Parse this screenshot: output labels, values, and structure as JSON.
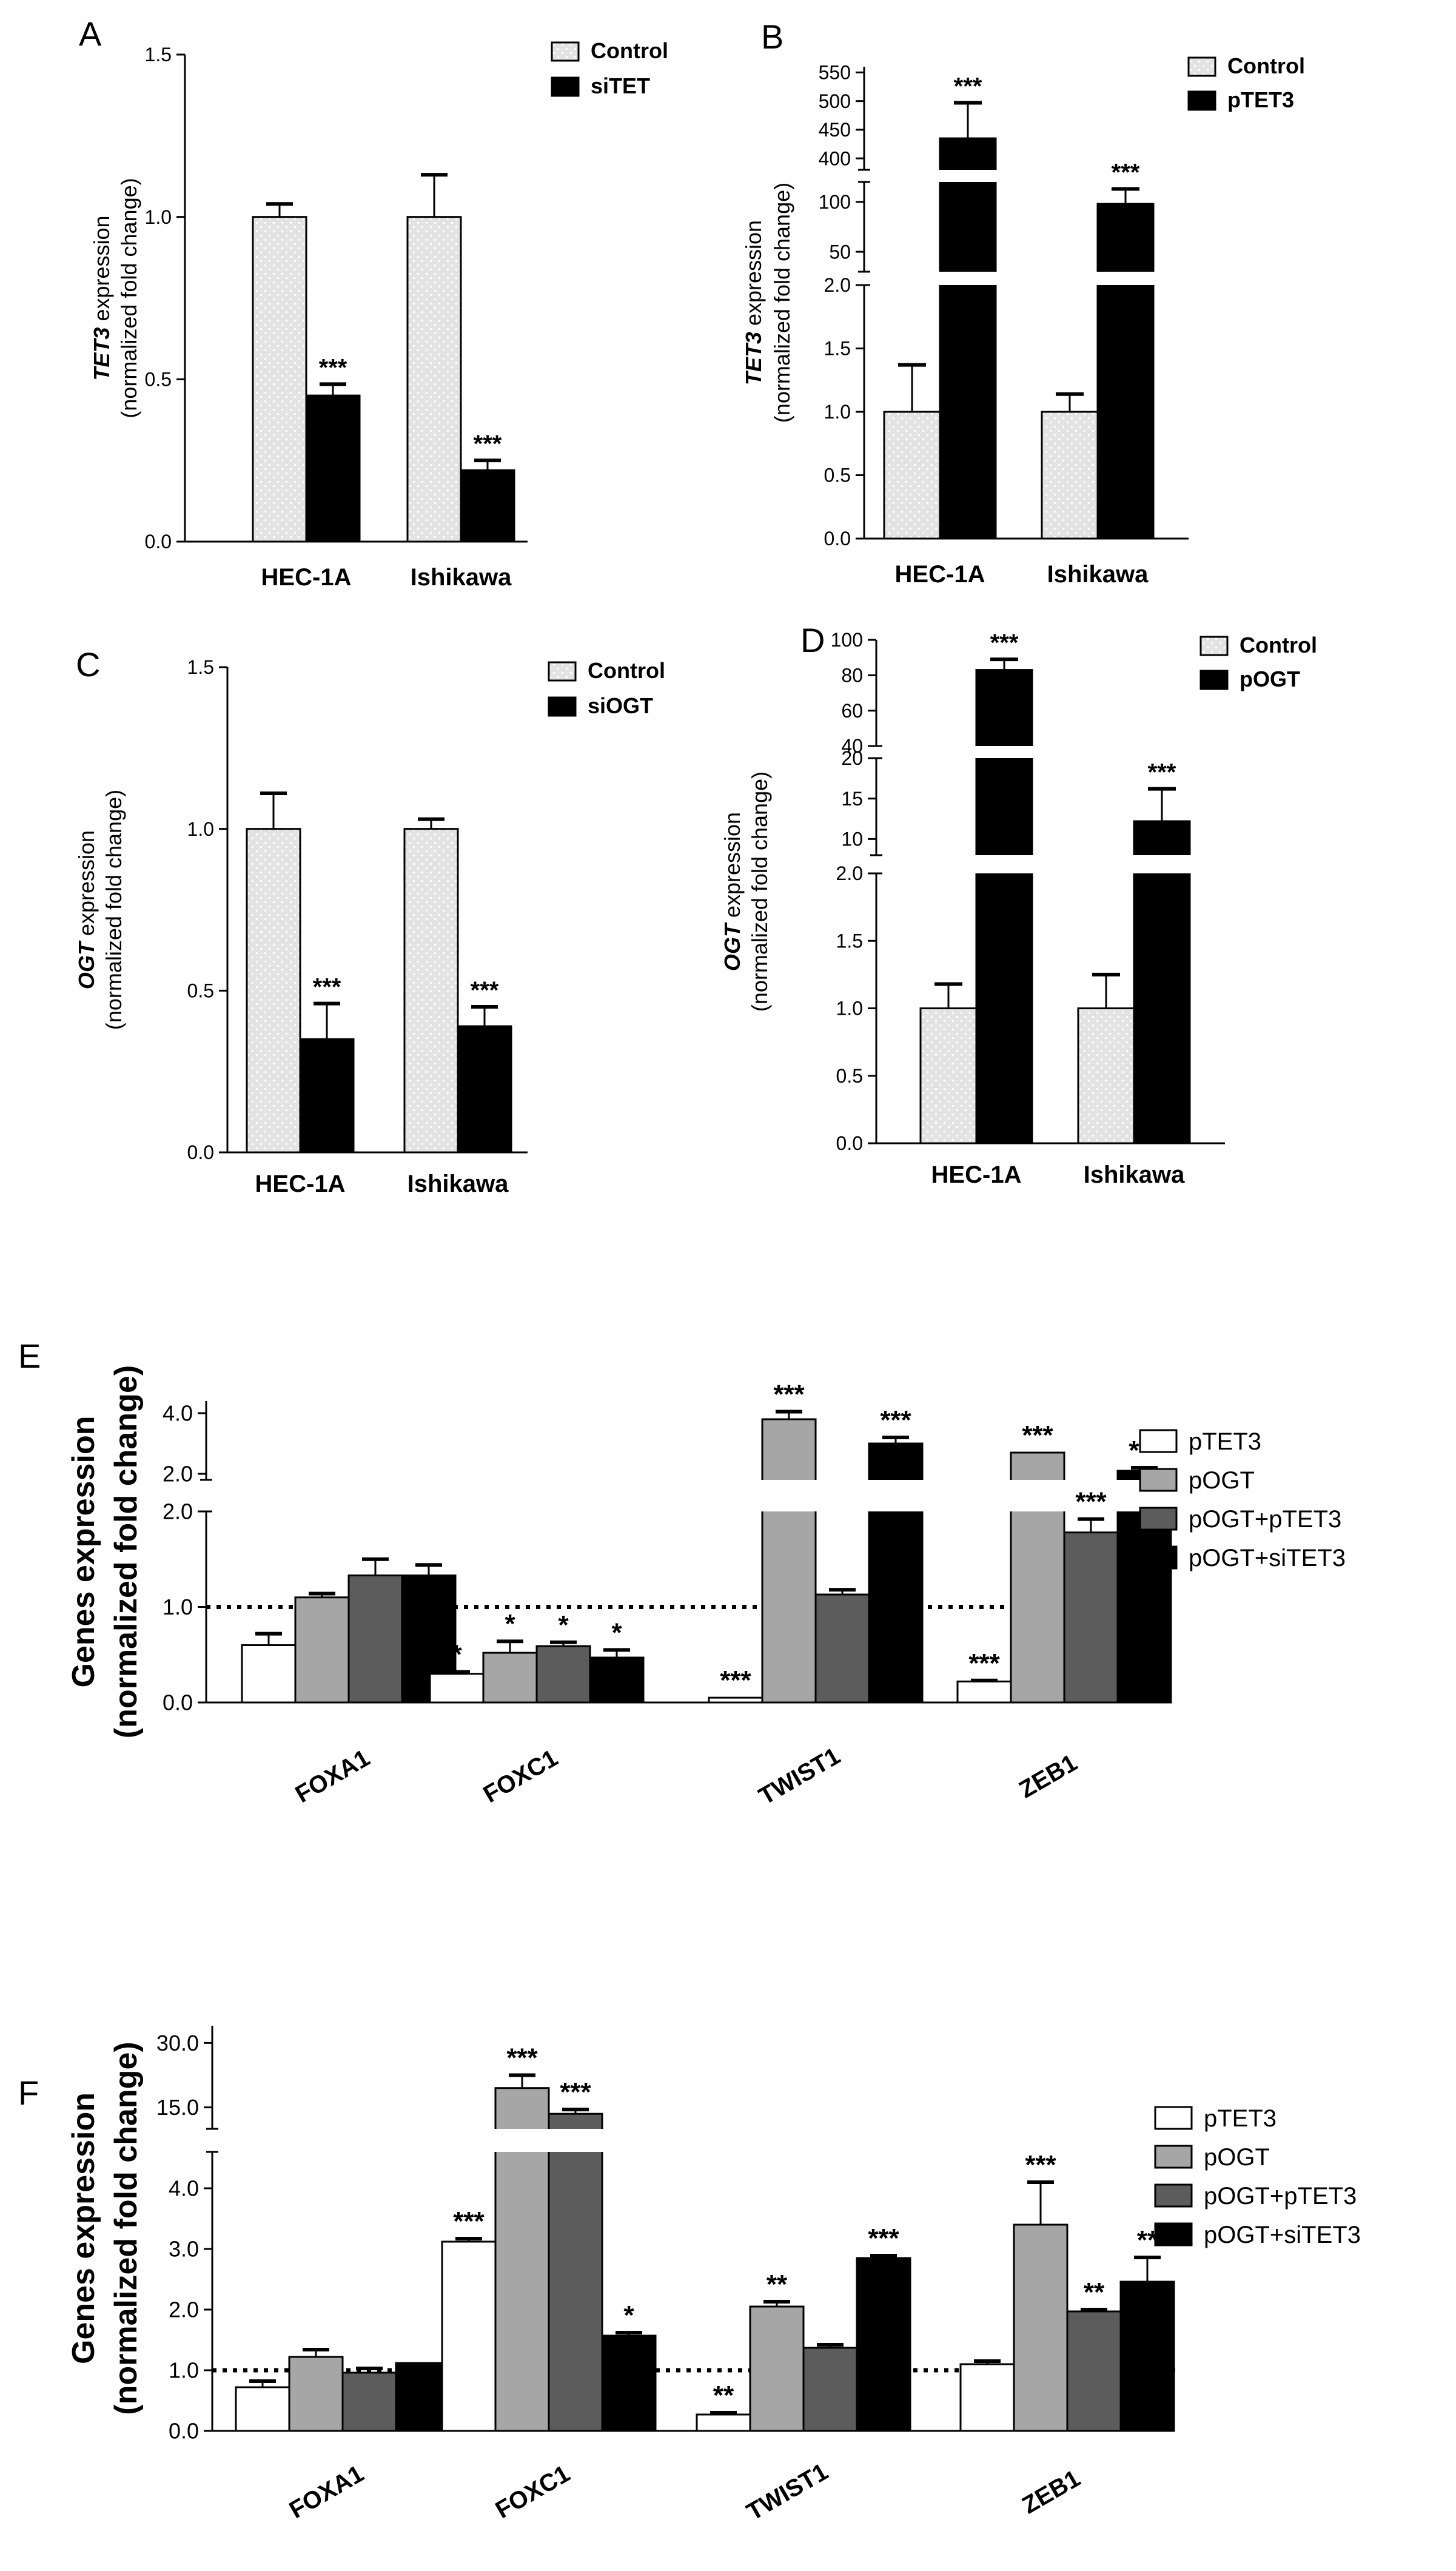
{
  "colors": {
    "control_fill": "#e3e3e3",
    "treatment_fill": "#000000",
    "ptet3_fill": "#ffffff",
    "pogt_fill": "#a6a6a6",
    "pogt_ptet3_fill": "#5c5c5c",
    "pogt_sitet3_fill": "#000000",
    "axis": "#000000"
  },
  "chart_data": [
    {
      "type": "bar",
      "panel": "A",
      "ylabel_gene": "TET3",
      "ylabel_rest": " expression",
      "ylabel2": "(normalized fold change)",
      "categories": [
        "HEC-1A",
        "Ishikawa"
      ],
      "ylim": [
        0,
        1.5
      ],
      "yticks": [
        "0.0",
        "0.5",
        "1.0",
        "1.5"
      ],
      "legend_position": "top-right",
      "series": [
        {
          "name": "Control",
          "values": [
            1.0,
            1.0
          ],
          "errors": [
            0.04,
            0.13
          ],
          "sig": [
            "",
            ""
          ]
        },
        {
          "name": "siTET",
          "values": [
            0.45,
            0.22
          ],
          "errors": [
            0.035,
            0.03
          ],
          "sig": [
            "***",
            "***"
          ]
        }
      ]
    },
    {
      "type": "bar",
      "panel": "B",
      "ylabel_gene": "TET3",
      "ylabel_rest": " expression",
      "ylabel2": "(normalized fold change)",
      "categories": [
        "HEC-1A",
        "Ishikawa"
      ],
      "broken_axis": true,
      "segments": [
        {
          "range": [
            0,
            2.0
          ],
          "ticks": [
            "0.0",
            "0.5",
            "1.0",
            "1.5",
            "2.0"
          ]
        },
        {
          "range": [
            30,
            120
          ],
          "ticks": [
            "50",
            "100"
          ]
        },
        {
          "range": [
            380,
            560
          ],
          "ticks": [
            "400",
            "450",
            "500",
            "550"
          ]
        }
      ],
      "legend_position": "top-right",
      "series": [
        {
          "name": "Control",
          "values": [
            1.0,
            1.0
          ],
          "errors": [
            0.37,
            0.14
          ],
          "sig": [
            "",
            ""
          ]
        },
        {
          "name": "pTET3",
          "values": [
            435,
            98
          ],
          "errors": [
            62,
            15
          ],
          "sig": [
            "***",
            "***"
          ]
        }
      ]
    },
    {
      "type": "bar",
      "panel": "C",
      "ylabel_gene": "OGT",
      "ylabel_rest": " expression",
      "ylabel2": "(normalized fold change)",
      "categories": [
        "HEC-1A",
        "Ishikawa"
      ],
      "ylim": [
        0,
        1.5
      ],
      "yticks": [
        "0.0",
        "0.5",
        "1.0",
        "1.5"
      ],
      "legend_position": "top-right",
      "series": [
        {
          "name": "Control",
          "values": [
            1.0,
            1.0
          ],
          "errors": [
            0.11,
            0.03
          ],
          "sig": [
            "",
            ""
          ]
        },
        {
          "name": "siOGT",
          "values": [
            0.35,
            0.39
          ],
          "errors": [
            0.11,
            0.06
          ],
          "sig": [
            "***",
            "***"
          ]
        }
      ]
    },
    {
      "type": "bar",
      "panel": "D",
      "ylabel_gene": "OGT",
      "ylabel_rest": " expression",
      "ylabel2": "(normalized fold change)",
      "categories": [
        "HEC-1A",
        "Ishikawa"
      ],
      "broken_axis": true,
      "segments": [
        {
          "range": [
            0,
            2.0
          ],
          "ticks": [
            "0.0",
            "0.5",
            "1.0",
            "1.5",
            "2.0"
          ]
        },
        {
          "range": [
            8,
            20
          ],
          "ticks": [
            "10",
            "15",
            "20"
          ]
        },
        {
          "range": [
            40,
            100
          ],
          "ticks": [
            "40",
            "60",
            "80",
            "100"
          ]
        }
      ],
      "legend_position": "top-right",
      "series": [
        {
          "name": "Control",
          "values": [
            1.0,
            1.0
          ],
          "errors": [
            0.18,
            0.25
          ],
          "sig": [
            "",
            ""
          ]
        },
        {
          "name": "pOGT",
          "values": [
            83,
            12.2
          ],
          "errors": [
            6,
            4
          ],
          "sig": [
            "***",
            "***"
          ]
        }
      ]
    },
    {
      "type": "bar",
      "panel": "E",
      "ylabel": "Genes expression",
      "ylabel2": "(normalized fold change)",
      "categories": [
        "FOXA1",
        "FOXC1",
        "TWIST1",
        "ZEB1"
      ],
      "broken_axis": true,
      "segments": [
        {
          "range": [
            0,
            2.0
          ],
          "ticks": [
            "0.0",
            "1.0",
            "2.0"
          ]
        },
        {
          "range": [
            1.8,
            4.4
          ],
          "ticks": [
            "2.0",
            "4.0"
          ]
        }
      ],
      "reference_line": 1.0,
      "legend_position": "right",
      "series": [
        {
          "name": "pTET3",
          "values": [
            0.6,
            0.3,
            0.05,
            0.22
          ],
          "errors": [
            0.12,
            0.02,
            0.0,
            0.01
          ],
          "sig": [
            "",
            "*",
            "***",
            "***"
          ]
        },
        {
          "name": "pOGT",
          "values": [
            1.1,
            0.52,
            3.8,
            2.7
          ],
          "errors": [
            0.04,
            0.12,
            0.25,
            0.0
          ],
          "sig": [
            "",
            "*",
            "***",
            "***"
          ]
        },
        {
          "name": "pOGT+pTET3",
          "values": [
            1.33,
            0.59,
            1.13,
            1.78
          ],
          "errors": [
            0.17,
            0.04,
            0.05,
            0.14
          ],
          "sig": [
            "",
            "*",
            "",
            "***"
          ]
        },
        {
          "name": "pOGT+siTET3",
          "values": [
            1.33,
            0.47,
            3.0,
            2.1
          ],
          "errors": [
            0.11,
            0.08,
            0.2,
            0.1
          ],
          "sig": [
            "",
            "*",
            "***",
            "***"
          ]
        }
      ],
      "xlabels": [
        "FOXA1",
        "FOXC1",
        "TWIST1",
        "ZEB1"
      ]
    },
    {
      "type": "bar",
      "panel": "F",
      "ylabel": "Genes expression",
      "ylabel2": "(normalized fold change)",
      "categories": [
        "FOXA1",
        "FOXC1",
        "TWIST1",
        "ZEB1"
      ],
      "broken_axis": true,
      "segments": [
        {
          "range": [
            0,
            4.6
          ],
          "ticks": [
            "0.0",
            "1.0",
            "2.0",
            "3.0",
            "4.0"
          ]
        },
        {
          "range": [
            10,
            34
          ],
          "ticks": [
            "15.0",
            "30.0"
          ]
        }
      ],
      "reference_line": 1.0,
      "legend_position": "right",
      "series": [
        {
          "name": "pTET3",
          "values": [
            0.72,
            3.12,
            0.27,
            1.1
          ],
          "errors": [
            0.1,
            0.05,
            0.03,
            0.05
          ],
          "sig": [
            "",
            "***",
            "**",
            ""
          ]
        },
        {
          "name": "pOGT",
          "values": [
            1.22,
            19.5,
            2.05,
            3.4
          ],
          "errors": [
            0.12,
            3.0,
            0.08,
            0.7
          ],
          "sig": [
            "",
            "***",
            "**",
            "***"
          ]
        },
        {
          "name": "pOGT+pTET3",
          "values": [
            0.96,
            13.5,
            1.37,
            1.97
          ],
          "errors": [
            0.07,
            1.0,
            0.05,
            0.03
          ],
          "sig": [
            "",
            "***",
            "",
            "**"
          ]
        },
        {
          "name": "pOGT+siTET3",
          "values": [
            1.12,
            1.57,
            2.85,
            2.46
          ],
          "errors": [
            0.0,
            0.05,
            0.04,
            0.4
          ],
          "sig": [
            "",
            "*",
            "***",
            "**"
          ]
        }
      ]
    }
  ]
}
